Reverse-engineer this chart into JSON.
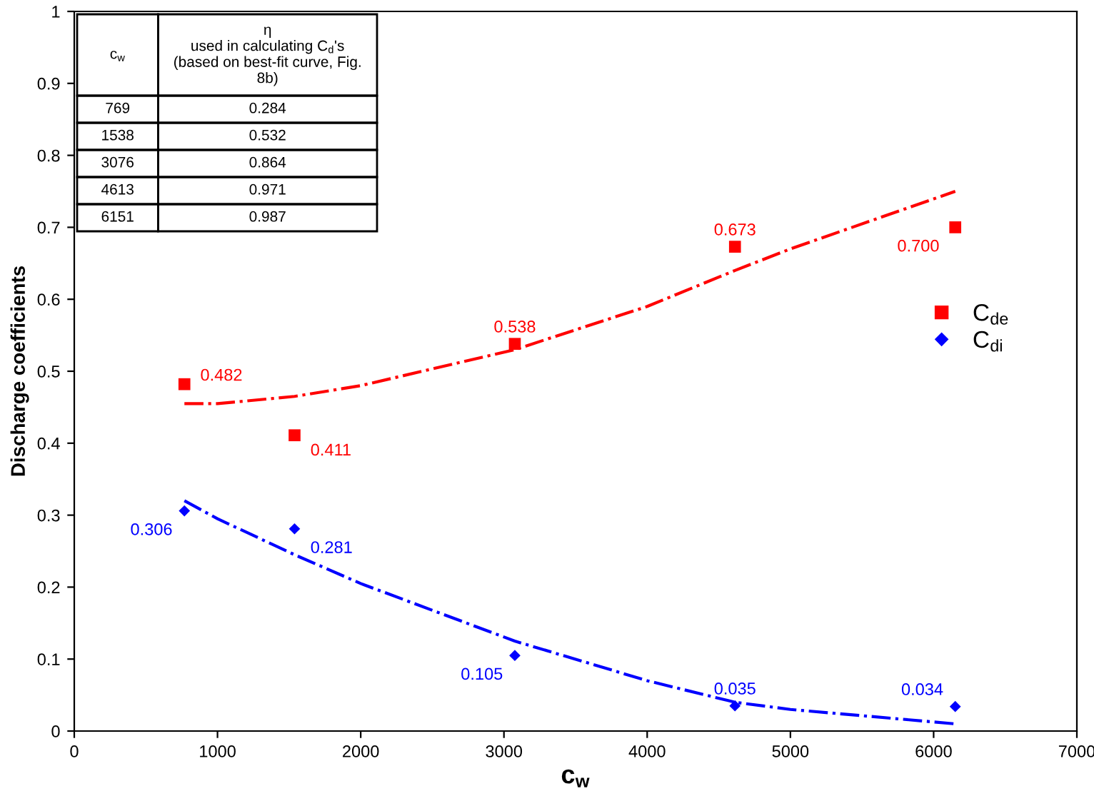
{
  "chart_data": {
    "type": "scatter",
    "xlabel": "c$_{w}$",
    "ylabel": "Discharge coefficients",
    "x": [
      769,
      1538,
      3076,
      4613,
      6151
    ],
    "series": [
      {
        "name": "C$_{de}$",
        "color": "#ff0000",
        "marker": "square",
        "values": [
          0.482,
          0.411,
          0.538,
          0.673,
          0.7
        ],
        "value_labels": [
          "0.482",
          "0.411",
          "0.538",
          "0.673",
          "0.700"
        ]
      },
      {
        "name": "C$_{di}$",
        "color": "#0000ff",
        "marker": "diamond",
        "values": [
          0.306,
          0.281,
          0.105,
          0.035,
          0.034
        ],
        "value_labels": [
          "0.306",
          "0.281",
          "0.105",
          "0.035",
          "0.034"
        ]
      },
      {
        "type": "line",
        "color": "#ff0000",
        "line_style": "dashdot",
        "x": [
          769,
          1000,
          1538,
          2000,
          3076,
          4000,
          4613,
          5000,
          6151
        ],
        "values": [
          0.455,
          0.455,
          0.465,
          0.48,
          0.53,
          0.59,
          0.64,
          0.67,
          0.75
        ]
      },
      {
        "type": "line",
        "color": "#0000ff",
        "line_style": "dashdot",
        "x": [
          769,
          1000,
          1538,
          2000,
          3076,
          4000,
          4613,
          5000,
          6151
        ],
        "values": [
          0.32,
          0.295,
          0.245,
          0.205,
          0.125,
          0.07,
          0.04,
          0.03,
          0.01
        ]
      }
    ],
    "xlim": [
      0,
      7000
    ],
    "xticks": [
      0,
      1000,
      2000,
      3000,
      4000,
      5000,
      6000,
      7000
    ],
    "ylim": [
      0,
      1
    ],
    "yticks": [
      0,
      0.1,
      0.2,
      0.3,
      0.4,
      0.5,
      0.6,
      0.7,
      0.8,
      0.9,
      1
    ],
    "grid": false,
    "legend": "right",
    "annotations": [
      "c$_{w}$",
      "η\nused in calculating C$_{d}$'s\n(based on best-fit curve, Fig.\n8b)",
      "769",
      "0.284",
      "1538",
      "0.532",
      "3076",
      "0.864",
      "4613",
      "0.971",
      "6151",
      "0.987"
    ]
  }
}
